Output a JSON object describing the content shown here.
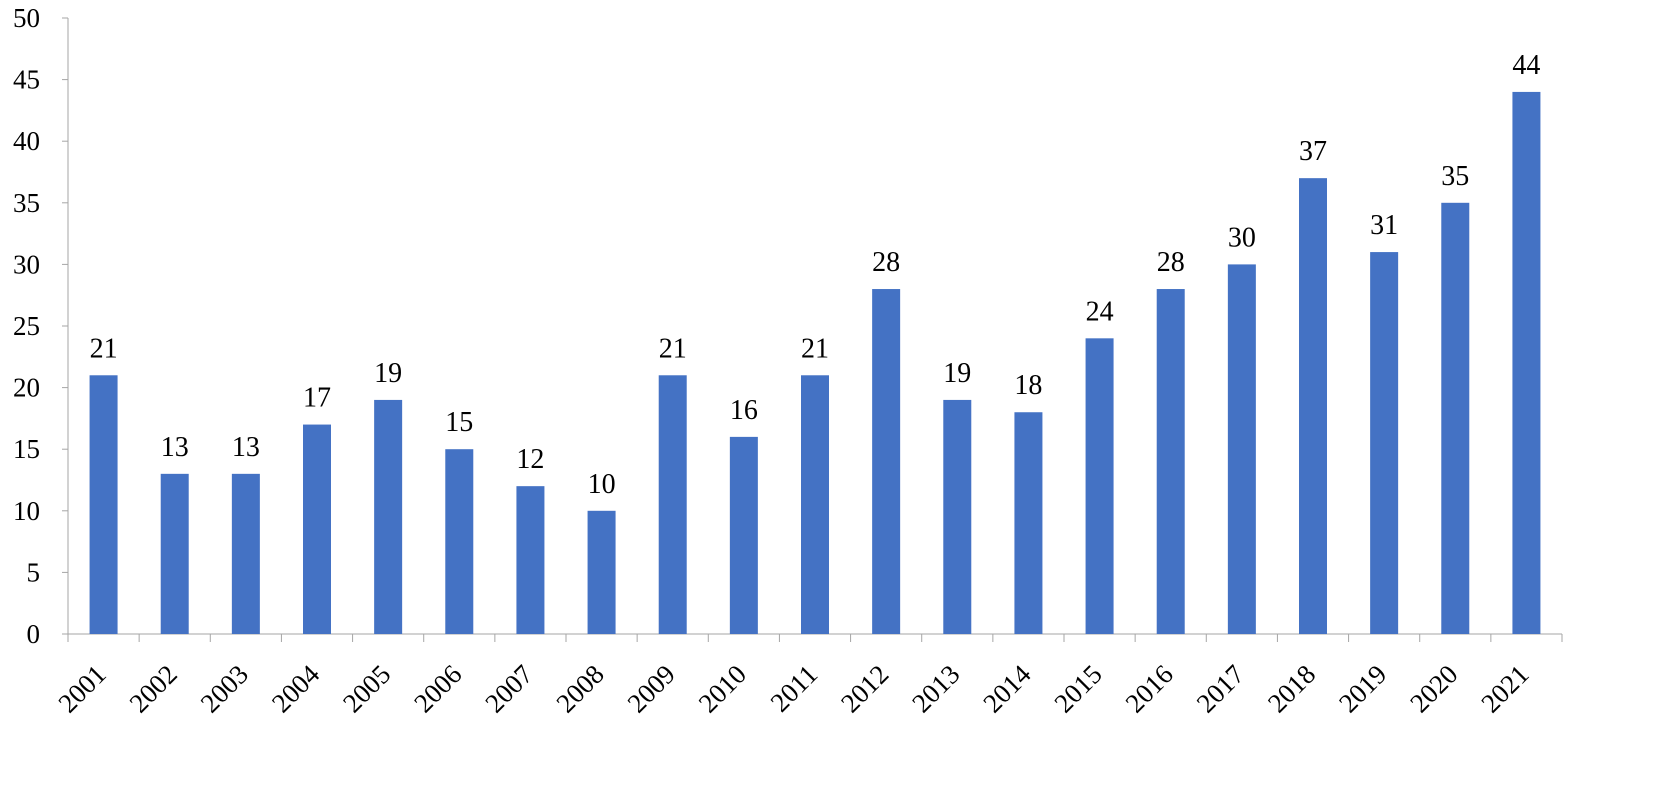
{
  "chart_data": {
    "type": "bar",
    "title": "",
    "xlabel": "",
    "ylabel": "",
    "categories": [
      "2001",
      "2002",
      "2003",
      "2004",
      "2005",
      "2006",
      "2007",
      "2008",
      "2009",
      "2010",
      "2011",
      "2012",
      "2013",
      "2014",
      "2015",
      "2016",
      "2017",
      "2018",
      "2019",
      "2020",
      "2021"
    ],
    "values": [
      21,
      13,
      13,
      17,
      19,
      15,
      12,
      10,
      21,
      16,
      21,
      28,
      19,
      18,
      24,
      28,
      30,
      37,
      31,
      35,
      44
    ],
    "ylim": [
      0,
      50
    ],
    "yticks": [
      0,
      5,
      10,
      15,
      20,
      25,
      30,
      35,
      40,
      45,
      50
    ],
    "grid": false,
    "legend": "none",
    "data_labels": true,
    "bar_color": "#4472C4",
    "axis_color": "#a6a6a6"
  }
}
